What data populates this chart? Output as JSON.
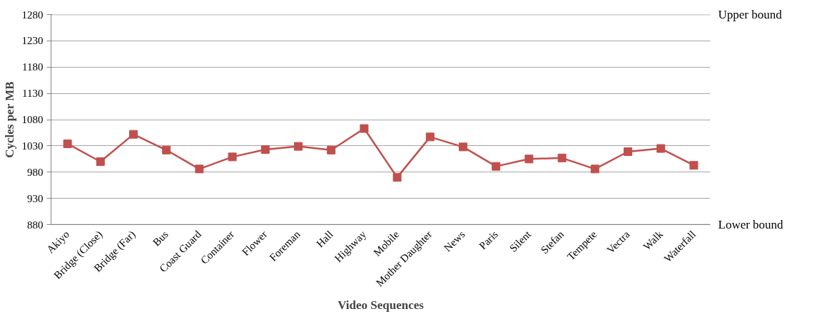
{
  "chart_data": {
    "type": "line",
    "xlabel": "Video Sequences",
    "ylabel": "Cycles per MB",
    "categories": [
      "Akiyo",
      "Bridge (Close)",
      "Bridge (Far)",
      "Bus",
      "Coast Guard",
      "Container",
      "Flower",
      "Foreman",
      "Hall",
      "Highway",
      "Mobile",
      "Mother Daughter",
      "News",
      "Paris",
      "Silent",
      "Stefan",
      "Tempete",
      "Vectra",
      "Walk",
      "Waterfall"
    ],
    "series": [
      {
        "color": "#c0504d",
        "values": [
          1034,
          1000,
          1052,
          1022,
          986,
          1009,
          1023,
          1029,
          1022,
          1063,
          970,
          1047,
          1028,
          991,
          1005,
          1007,
          986,
          1019,
          1025,
          993
        ]
      }
    ],
    "ylim": [
      880,
      1280
    ],
    "yticks": [
      880,
      930,
      980,
      1030,
      1080,
      1130,
      1180,
      1230,
      1280
    ],
    "grid": "y",
    "marker": "square",
    "line_style": "solid",
    "ref_lines": [
      {
        "axis": "y",
        "value": 1280,
        "label": "Upper bound",
        "color": "#a6a6a6"
      },
      {
        "axis": "y",
        "value": 880,
        "label": "Lower bound",
        "color": "#868686"
      }
    ]
  }
}
